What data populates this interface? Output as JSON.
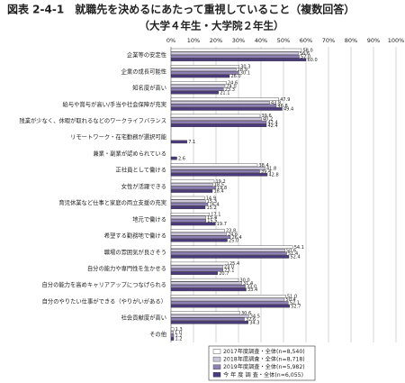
{
  "chart_data": {
    "type": "bar",
    "orientation": "horizontal",
    "title": "図表 2-4-1　就職先を決めるにあたって重視していること（複数回答）",
    "subtitle": "（大学４年生・大学院２年生）",
    "categories": [
      "企業等の安定性",
      "企業の成長可能性",
      "知名度が高い",
      "給与や賞与が高い/手当や社会保障が充実",
      "残業が少なく、休暇が取れるなどのワークライフバランス",
      "リモートワーク・在宅勤務が選択可能",
      "兼業・副業が認められている",
      "正社員として働ける",
      "女性が活躍できる",
      "育児休業など仕事と家庭の両立支援の充実",
      "地元で働ける",
      "希望する勤務地で働ける",
      "職場の雰囲気が良さそう",
      "自分の能力や専門性を生かせる",
      "自分の能力を高めキャリアアップにつなげられる",
      "自分のやりたい仕事ができる（やりがいがある）",
      "社会貢献度が高い",
      "その他"
    ],
    "series": [
      {
        "name": "2017年度調査・全体(n=8,540)",
        "color": "#ffffff",
        "values": [
          58.0,
          30.3,
          24.6,
          47.9,
          39.6,
          null,
          null,
          38.4,
          19.2,
          14.9,
          17.1,
          23.8,
          54.1,
          25.4,
          30.0,
          51.0,
          30.6,
          1.3
        ],
        "value_labels": [
          "58.0",
          "30.3",
          "24.6",
          "47.9",
          "39.6",
          null,
          null,
          "38.4",
          "19.2",
          "14.9",
          "17.1",
          "23.8",
          "54.1",
          "25.4",
          "30.0",
          "51.0",
          "30.6",
          "1.3"
        ]
      },
      {
        "name": "2018年度調査・全体(n=8,718)",
        "color": "#cdc7de",
        "values": [
          56.6,
          28.9,
          24.0,
          43.8,
          40.2,
          null,
          null,
          41.8,
          18.5,
          15.3,
          15.4,
          24.6,
          50.6,
          23.0,
          31.4,
          50.4,
          34.5,
          1.0
        ],
        "value_labels": [
          "56.6",
          "28.9",
          "24.0",
          "43.8",
          "40.2",
          null,
          null,
          "41.8",
          "18.5",
          "15.3",
          "15.4",
          "24.6",
          "50.6",
          "23.0",
          "31.4",
          "50.4",
          "34.5",
          "1.0"
        ]
      },
      {
        "name": "2019年度調査・全体(n=5,982)",
        "color": "#8e80b5",
        "values": [
          57.0,
          30.1,
          23.3,
          46.8,
          42.4,
          null,
          null,
          39.4,
          19.8,
          16.4,
          15.5,
          26.4,
          51.4,
          23.1,
          33.0,
          52.1,
          32.6,
          1.2
        ],
        "value_labels": [
          "57.0",
          "30.1",
          "23.3",
          "46.8",
          "42.4",
          null,
          null,
          "39.4",
          "19.8",
          "16.4",
          "15.5",
          "26.4",
          "51.4",
          "23.1",
          "33.0",
          "52.1",
          "32.6",
          "1.2"
        ]
      },
      {
        "name": "今 年 度 調 査・全体(n=6,055)",
        "color": "#4b3a7d",
        "values": [
          60.0,
          26.0,
          21.1,
          49.4,
          42.4,
          7.1,
          2.6,
          42.8,
          18.4,
          15.2,
          19.7,
          25.0,
          52.4,
          20.7,
          33.4,
          52.7,
          34.3,
          1.2
        ],
        "value_labels": [
          "60.0",
          "26.0",
          "21.1",
          "49.4",
          "42.4",
          "7.1",
          "2.6",
          "42.8",
          "18.4",
          "15.2",
          "19.7",
          "25.0",
          "52.4",
          "20.7",
          "33.4",
          "52.7",
          "34.3",
          "1.2"
        ]
      }
    ],
    "xlim": [
      0,
      100
    ],
    "xticks": [
      {
        "value": 0,
        "label": "0%"
      },
      {
        "value": 10,
        "label": "10%"
      },
      {
        "value": 20,
        "label": "20%"
      },
      {
        "value": 30,
        "label": "30%"
      },
      {
        "value": 40,
        "label": "40%"
      },
      {
        "value": 50,
        "label": "50%"
      },
      {
        "value": 60,
        "label": "60%"
      },
      {
        "value": 70,
        "label": "70%"
      },
      {
        "value": 80,
        "label": "80%"
      },
      {
        "value": 90,
        "label": "90%"
      },
      {
        "value": 100,
        "label": "100%"
      }
    ],
    "grid": true,
    "legend_position": "bottom"
  }
}
